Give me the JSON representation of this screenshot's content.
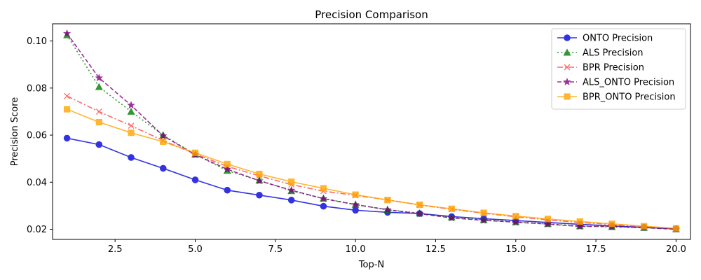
{
  "chart_data": {
    "type": "line",
    "title": "Precision Comparison",
    "xlabel": "Top-N",
    "ylabel": "Precision Score",
    "xlim": [
      0.55,
      20.45
    ],
    "ylim": [
      0.0157,
      0.1073
    ],
    "xticks": [
      2.5,
      5.0,
      7.5,
      10.0,
      12.5,
      15.0,
      17.5,
      20.0
    ],
    "xtick_labels": [
      "2.5",
      "5.0",
      "7.5",
      "10.0",
      "12.5",
      "15.0",
      "17.5",
      "20.0"
    ],
    "yticks": [
      0.02,
      0.04,
      0.06,
      0.08,
      0.1
    ],
    "ytick_labels": [
      "0.02",
      "0.04",
      "0.06",
      "0.08",
      "0.10"
    ],
    "grid": false,
    "legend_position": "top-right",
    "x": [
      1,
      2,
      3,
      4,
      5,
      6,
      7,
      8,
      9,
      10,
      11,
      12,
      13,
      14,
      15,
      16,
      17,
      18,
      19,
      20
    ],
    "series": [
      {
        "name": "ONTO Precision",
        "color": "#0000dd",
        "marker": "circle",
        "line_style": "solid",
        "values": [
          0.0587,
          0.056,
          0.0505,
          0.0459,
          0.041,
          0.0366,
          0.0345,
          0.0324,
          0.0298,
          0.0281,
          0.0272,
          0.0267,
          0.0254,
          0.0245,
          0.0237,
          0.0229,
          0.0221,
          0.0214,
          0.0208,
          0.0202
        ]
      },
      {
        "name": "ALS Precision",
        "color": "#008000",
        "marker": "triangle",
        "line_style": "dotted",
        "values": [
          0.1025,
          0.0805,
          0.07,
          0.06,
          0.0518,
          0.0449,
          0.0408,
          0.0363,
          0.0331,
          0.0305,
          0.0283,
          0.0268,
          0.0251,
          0.024,
          0.0231,
          0.0223,
          0.0214,
          0.021,
          0.0207,
          0.0201
        ]
      },
      {
        "name": "BPR Precision",
        "color": "#ff4444",
        "marker": "x",
        "line_style": "dashdot",
        "values": [
          0.0766,
          0.07,
          0.064,
          0.0577,
          0.052,
          0.0467,
          0.0427,
          0.039,
          0.0362,
          0.0344,
          0.0325,
          0.0303,
          0.0285,
          0.0268,
          0.0253,
          0.024,
          0.0229,
          0.022,
          0.0211,
          0.0202
        ]
      },
      {
        "name": "ALS_ONTO Precision",
        "color": "#800080",
        "marker": "star",
        "line_style": "dashed",
        "values": [
          0.1032,
          0.0843,
          0.0727,
          0.0597,
          0.0517,
          0.0455,
          0.0406,
          0.0366,
          0.033,
          0.0305,
          0.0283,
          0.0266,
          0.0248,
          0.0238,
          0.023,
          0.0222,
          0.0212,
          0.0212,
          0.0207,
          0.02
        ]
      },
      {
        "name": "BPR_ONTO Precision",
        "color": "#ffa500",
        "marker": "square",
        "line_style": "solid",
        "values": [
          0.071,
          0.0655,
          0.061,
          0.0572,
          0.0525,
          0.0477,
          0.0435,
          0.0402,
          0.0374,
          0.0347,
          0.0324,
          0.0304,
          0.0287,
          0.027,
          0.0256,
          0.0244,
          0.0233,
          0.0223,
          0.0213,
          0.0204
        ]
      }
    ]
  }
}
